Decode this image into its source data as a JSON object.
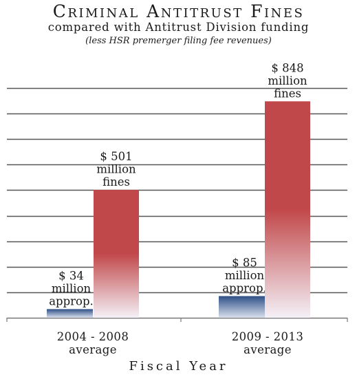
{
  "title": "Criminal Antitrust Fines",
  "subtitle": "compared with Antitrust Division funding",
  "note": "(less HSR premerger filing fee revenues)",
  "colors": {
    "appropriations": "#2e4f86",
    "fines": "#c1484a",
    "grid": "#555555",
    "axis": "#777777"
  },
  "chart_data": {
    "type": "bar",
    "title": "Criminal Antitrust Fines",
    "subtitle": "compared with Antitrust Division funding",
    "xlabel": "Fiscal Year",
    "ylabel": "",
    "ylim": [
      0,
      900
    ],
    "grid": true,
    "categories": [
      {
        "line1": "2004 - 2008",
        "line2": "average"
      },
      {
        "line1": "2009 - 2013",
        "line2": "average"
      }
    ],
    "series": [
      {
        "values": [
          34,
          85
        ],
        "labels": [
          [
            "$ 34",
            "million",
            "approp."
          ],
          [
            "$ 85",
            "million",
            "approp."
          ]
        ]
      },
      {
        "values": [
          501,
          848
        ],
        "labels": [
          [
            "$ 501",
            "million",
            "fines"
          ],
          [
            "$ 848",
            "million",
            "fines"
          ]
        ]
      }
    ]
  }
}
